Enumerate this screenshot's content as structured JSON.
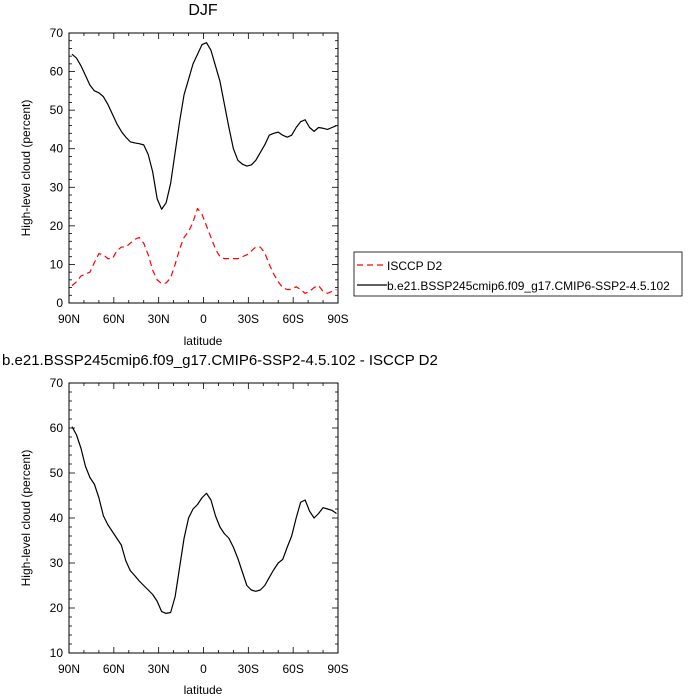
{
  "chart_data": [
    {
      "type": "line",
      "title": "DJF",
      "xlabel": "latitude",
      "ylabel": "High-level cloud (percent)",
      "xlim": [
        90,
        -90
      ],
      "ylim": [
        0,
        70
      ],
      "x_ticks": [
        90,
        60,
        30,
        0,
        -30,
        -60,
        -90
      ],
      "x_tick_labels": [
        "90N",
        "60N",
        "30N",
        "0",
        "30S",
        "60S",
        "90S"
      ],
      "y_ticks": [
        0,
        10,
        20,
        30,
        40,
        50,
        60,
        70
      ],
      "y_tick_labels": [
        "0",
        "10",
        "20",
        "30",
        "40",
        "50",
        "60",
        "70"
      ],
      "grid": false,
      "legend_position": "right",
      "series": [
        {
          "name": "ISCCP D2",
          "color": "#ff0000",
          "dash": "dashed",
          "x": [
            88,
            85,
            82,
            79,
            76,
            73,
            70,
            67,
            64,
            61,
            58,
            55,
            52,
            49,
            46,
            43,
            40,
            37,
            34,
            31,
            28,
            25,
            22,
            19,
            16,
            13,
            10,
            7,
            4,
            1,
            -2,
            -5,
            -8,
            -11,
            -14,
            -17,
            -20,
            -23,
            -26,
            -29,
            -32,
            -35,
            -38,
            -41,
            -44,
            -47,
            -50,
            -53,
            -56,
            -59,
            -62,
            -65,
            -68,
            -71,
            -74,
            -77,
            -80,
            -83,
            -86,
            -89
          ],
          "values": [
            4.5,
            5.5,
            7,
            7.5,
            8,
            10.5,
            12.8,
            12.5,
            11.5,
            11.5,
            13.5,
            14.5,
            14.5,
            15.5,
            16.5,
            17,
            15.5,
            12.5,
            8.5,
            6,
            5,
            5.2,
            6.5,
            10,
            14,
            17,
            18.5,
            21,
            24.5,
            23,
            20,
            17,
            14,
            12,
            11.5,
            11.5,
            11.5,
            11.5,
            12,
            12.5,
            13.5,
            14.5,
            14.5,
            13,
            10,
            7.5,
            5.5,
            4,
            3.5,
            3.5,
            4.2,
            3.5,
            2.5,
            3,
            4,
            4.5,
            3,
            2.5,
            3,
            3.5
          ]
        },
        {
          "name": "b.e21.BSSP245cmip6.f09_g17.CMIP6-SSP2-4.5.102",
          "color": "#000000",
          "dash": "solid",
          "x": [
            88,
            85,
            82,
            79,
            76,
            73,
            70,
            67,
            64,
            61,
            58,
            55,
            52,
            49,
            46,
            43,
            40,
            37,
            34,
            31,
            28,
            25,
            22,
            19,
            16,
            13,
            10,
            7,
            4,
            1,
            -2,
            -5,
            -8,
            -11,
            -14,
            -17,
            -20,
            -23,
            -26,
            -29,
            -32,
            -35,
            -38,
            -41,
            -44,
            -47,
            -50,
            -53,
            -56,
            -59,
            -62,
            -65,
            -68,
            -71,
            -74,
            -77,
            -80,
            -83,
            -86,
            -89
          ],
          "values": [
            64.5,
            63.5,
            61.5,
            59,
            56.5,
            55,
            54.5,
            53.5,
            51.5,
            49,
            46.5,
            44.5,
            43,
            41.8,
            41.5,
            41.3,
            41,
            38.5,
            34,
            27,
            24.3,
            26,
            31,
            39,
            47,
            54,
            58,
            62,
            64.5,
            67,
            67.5,
            65.5,
            61.5,
            57.5,
            51.5,
            45.5,
            40,
            37,
            36,
            35.5,
            35.8,
            37,
            39,
            41,
            43.5,
            44,
            44.3,
            43.5,
            43,
            43.5,
            45.5,
            47,
            47.5,
            45.5,
            44.5,
            45.5,
            45.3,
            45,
            45.5,
            46
          ]
        }
      ]
    },
    {
      "type": "line",
      "title": "b.e21.BSSP245cmip6.f09_g17.CMIP6-SSP2-4.5.102 - ISCCP D2",
      "xlabel": "latitude",
      "ylabel": "High-level cloud (percent)",
      "xlim": [
        90,
        -90
      ],
      "ylim": [
        10,
        70
      ],
      "x_ticks": [
        90,
        60,
        30,
        0,
        -30,
        -60,
        -90
      ],
      "x_tick_labels": [
        "90N",
        "60N",
        "30N",
        "0",
        "30S",
        "60S",
        "90S"
      ],
      "y_ticks": [
        10,
        20,
        30,
        40,
        50,
        60,
        70
      ],
      "y_tick_labels": [
        "10",
        "20",
        "30",
        "40",
        "50",
        "60",
        "70"
      ],
      "grid": false,
      "series": [
        {
          "color": "#000000",
          "dash": "solid",
          "x": [
            88,
            85,
            82,
            79,
            76,
            73,
            70,
            67,
            64,
            61,
            58,
            55,
            52,
            49,
            46,
            43,
            40,
            37,
            34,
            31,
            28,
            25,
            22,
            19,
            16,
            13,
            10,
            7,
            4,
            1,
            -2,
            -5,
            -8,
            -11,
            -14,
            -17,
            -20,
            -23,
            -26,
            -29,
            -32,
            -35,
            -38,
            -41,
            -44,
            -47,
            -50,
            -53,
            -56,
            -59,
            -62,
            -65,
            -68,
            -71,
            -74,
            -77,
            -80,
            -83,
            -86,
            -89
          ],
          "values": [
            60.3,
            58.5,
            55.5,
            51.5,
            49,
            47.5,
            44.5,
            40.5,
            38.5,
            37,
            35.5,
            34,
            30.5,
            28.3,
            27.2,
            26,
            25,
            24,
            23,
            21.5,
            19.2,
            18.8,
            19,
            22.5,
            29,
            35.5,
            40,
            42,
            43,
            44.5,
            45.5,
            44,
            40.5,
            38,
            36.5,
            35.5,
            33.5,
            31,
            28,
            25,
            24,
            23.7,
            24,
            25,
            26.8,
            28.5,
            30,
            30.8,
            33.5,
            36,
            40,
            43.5,
            44,
            41.5,
            40,
            41,
            42.3,
            42,
            41.7,
            41
          ]
        }
      ]
    }
  ]
}
